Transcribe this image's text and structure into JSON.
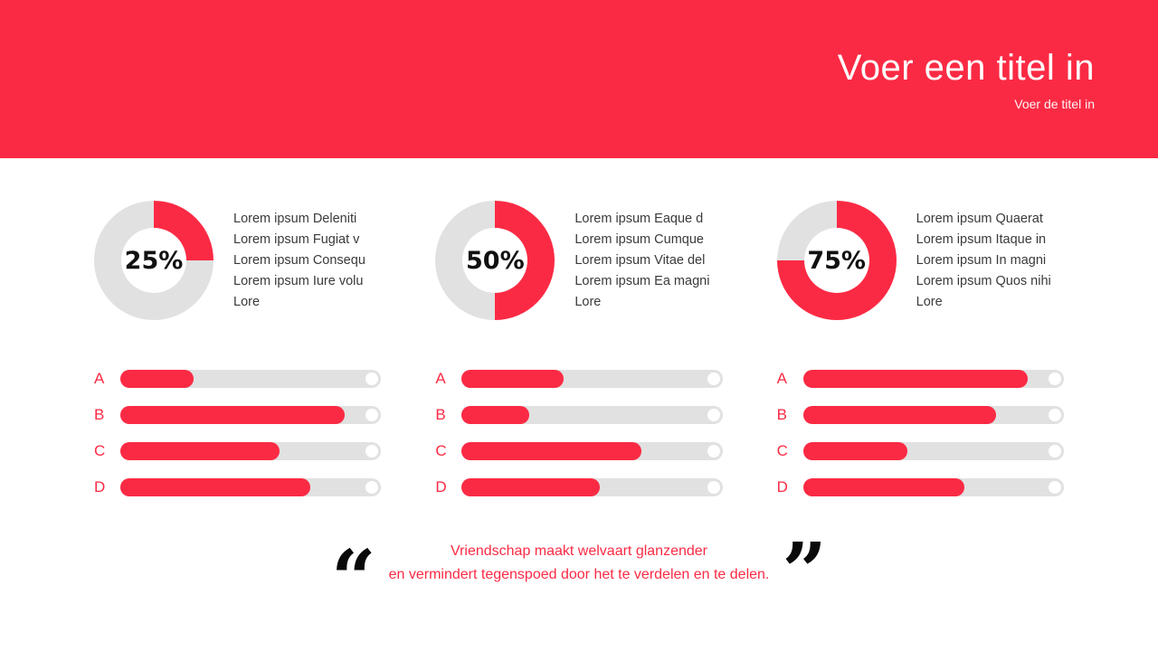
{
  "header": {
    "title": "Voer een titel in",
    "subtitle": "Voer de titel in"
  },
  "colors": {
    "accent": "#FB2A44",
    "track": "#E1E1E1"
  },
  "columns": [
    {
      "donut": {
        "percent": 25,
        "label": "25%"
      },
      "lines": [
        "Lorem ipsum Deleniti",
        "Lorem ipsum Fugiat v",
        "Lorem ipsum Consequ",
        "Lorem ipsum Iure volu",
        "Lore"
      ],
      "bars": [
        {
          "label": "A",
          "value": 28
        },
        {
          "label": "B",
          "value": 86
        },
        {
          "label": "C",
          "value": 61
        },
        {
          "label": "D",
          "value": 73
        }
      ]
    },
    {
      "donut": {
        "percent": 50,
        "label": "50%"
      },
      "lines": [
        "Lorem ipsum Eaque d",
        "Lorem ipsum Cumque",
        "Lorem ipsum Vitae del",
        "Lorem ipsum Ea magni",
        "Lore"
      ],
      "bars": [
        {
          "label": "A",
          "value": 39
        },
        {
          "label": "B",
          "value": 26
        },
        {
          "label": "C",
          "value": 69
        },
        {
          "label": "D",
          "value": 53
        }
      ]
    },
    {
      "donut": {
        "percent": 75,
        "label": "75%"
      },
      "lines": [
        "Lorem ipsum Quaerat",
        "Lorem ipsum Itaque in",
        "Lorem ipsum In magni",
        "Lorem ipsum Quos nihi",
        "Lore"
      ],
      "bars": [
        {
          "label": "A",
          "value": 86
        },
        {
          "label": "B",
          "value": 74
        },
        {
          "label": "C",
          "value": 40
        },
        {
          "label": "D",
          "value": 62
        }
      ]
    }
  ],
  "quote": {
    "open_mark": "“",
    "close_mark": "”",
    "line1": "Vriendschap maakt welvaart glanzender",
    "line2": "en vermindert tegenspoed door het te verdelen en te delen."
  },
  "chart_data": [
    {
      "type": "pie",
      "subtype": "donut",
      "title": "25%",
      "labels": [
        "filled",
        "remainder"
      ],
      "values": [
        25,
        75
      ],
      "colors": [
        "#FB2A44",
        "#E1E1E1"
      ]
    },
    {
      "type": "pie",
      "subtype": "donut",
      "title": "50%",
      "labels": [
        "filled",
        "remainder"
      ],
      "values": [
        50,
        50
      ],
      "colors": [
        "#FB2A44",
        "#E1E1E1"
      ]
    },
    {
      "type": "pie",
      "subtype": "donut",
      "title": "75%",
      "labels": [
        "filled",
        "remainder"
      ],
      "values": [
        75,
        25
      ],
      "colors": [
        "#FB2A44",
        "#E1E1E1"
      ]
    },
    {
      "type": "bar",
      "orientation": "horizontal",
      "group": "left",
      "categories": [
        "A",
        "B",
        "C",
        "D"
      ],
      "values": [
        28,
        86,
        61,
        73
      ],
      "xlim": [
        0,
        100
      ]
    },
    {
      "type": "bar",
      "orientation": "horizontal",
      "group": "middle",
      "categories": [
        "A",
        "B",
        "C",
        "D"
      ],
      "values": [
        39,
        26,
        69,
        53
      ],
      "xlim": [
        0,
        100
      ]
    },
    {
      "type": "bar",
      "orientation": "horizontal",
      "group": "right",
      "categories": [
        "A",
        "B",
        "C",
        "D"
      ],
      "values": [
        86,
        74,
        40,
        62
      ],
      "xlim": [
        0,
        100
      ]
    }
  ]
}
